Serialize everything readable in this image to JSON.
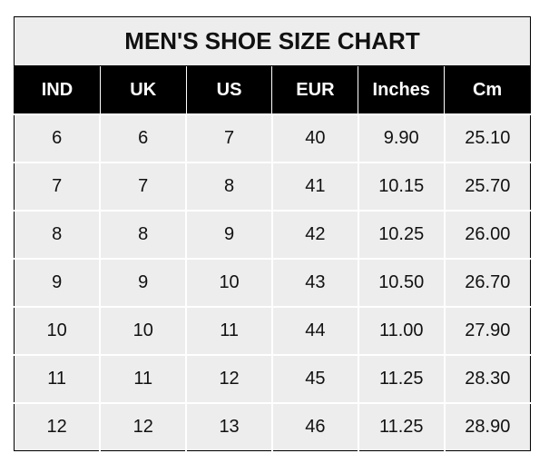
{
  "title": "MEN'S SHOE SIZE CHART",
  "columns": [
    "IND",
    "UK",
    "US",
    "EUR",
    "Inches",
    "Cm"
  ],
  "rows": [
    [
      "6",
      "6",
      "7",
      "40",
      "9.90",
      "25.10"
    ],
    [
      "7",
      "7",
      "8",
      "41",
      "10.15",
      "25.70"
    ],
    [
      "8",
      "8",
      "9",
      "42",
      "10.25",
      "26.00"
    ],
    [
      "9",
      "9",
      "10",
      "43",
      "10.50",
      "26.70"
    ],
    [
      "10",
      "10",
      "11",
      "44",
      "11.00",
      "27.90"
    ],
    [
      "11",
      "11",
      "12",
      "45",
      "11.25",
      "28.30"
    ],
    [
      "12",
      "12",
      "13",
      "46",
      "11.25",
      "28.90"
    ]
  ],
  "colors": {
    "header_bg": "#000000",
    "header_text": "#ffffff",
    "cell_bg": "#ededed",
    "grid": "#ffffff"
  }
}
